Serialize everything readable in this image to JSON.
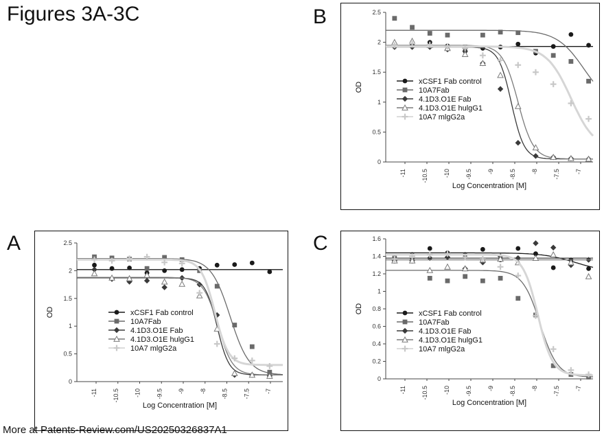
{
  "page_title": "Figures 3A-3C",
  "footer": "More at Patents-Review.com/US20250326837A1",
  "chart_data": [
    {
      "panel": "A",
      "type": "scatter",
      "xlabel": "Log Concentration [M]",
      "ylabel": "OD",
      "ylim": [
        0,
        2.5
      ],
      "xlim": [
        -11.5,
        -6.8
      ],
      "y_ticks": [
        "0",
        "0.5",
        "1",
        "1.5",
        "2",
        "2.5"
      ],
      "x_ticks": [
        "-11",
        "-10.5",
        "-10",
        "-9.5",
        "-9",
        "-8",
        "-8.5",
        "-7.5",
        "-7"
      ],
      "legend": "center",
      "series": [
        {
          "name": "xCSF1 Fab control",
          "marker": "circle",
          "color": "#1a1a1a",
          "x": [
            -11.1,
            -10.7,
            -10.3,
            -9.9,
            -9.5,
            -9.1,
            -8.7,
            -8.3,
            -7.9,
            -7.5,
            -7.1
          ],
          "y": [
            2.1,
            2.04,
            2.05,
            1.96,
            2.0,
            2.02,
            2.04,
            2.1,
            2.11,
            2.14,
            1.98
          ],
          "curve": {
            "top": 2.02,
            "bottom": 2.02,
            "ec50": -8.0,
            "hill": 1
          }
        },
        {
          "name": "10A7Fab",
          "marker": "square",
          "color": "#6a6a6a",
          "x": [
            -11.1,
            -10.7,
            -10.3,
            -9.9,
            -9.5,
            -9.1,
            -8.7,
            -8.3,
            -7.9,
            -7.5,
            -7.1
          ],
          "y": [
            2.25,
            2.23,
            2.21,
            2.04,
            2.24,
            2.2,
            2.0,
            1.72,
            1.02,
            0.63,
            0.17
          ],
          "curve": {
            "top": 2.22,
            "bottom": 0.12,
            "ec50": -8.0,
            "hill": 2.0
          }
        },
        {
          "name": "4.1D3.O1E Fab",
          "marker": "diamond",
          "color": "#3a3a3a",
          "x": [
            -11.1,
            -10.7,
            -10.3,
            -9.9,
            -9.5,
            -9.1,
            -8.7,
            -8.3,
            -7.9,
            -7.5,
            -7.1
          ],
          "y": [
            2.02,
            1.85,
            1.8,
            1.82,
            1.7,
            1.87,
            1.75,
            1.2,
            0.12,
            0.12,
            0.1
          ],
          "curve": {
            "top": 1.87,
            "bottom": 0.12,
            "ec50": -8.3,
            "hill": 3.2
          }
        },
        {
          "name": "4.1D3.O1E hulgG1",
          "marker": "triangle",
          "color": "#7a7a7a",
          "x": [
            -11.1,
            -10.7,
            -10.3,
            -9.9,
            -9.5,
            -9.1,
            -8.7,
            -8.3,
            -7.9,
            -7.5,
            -7.1
          ],
          "y": [
            1.95,
            1.87,
            1.86,
            1.92,
            1.8,
            1.76,
            1.55,
            0.95,
            0.15,
            0.12,
            0.1
          ],
          "curve": {
            "top": 1.88,
            "bottom": 0.12,
            "ec50": -8.28,
            "hill": 2.6
          }
        },
        {
          "name": "10A7 mlgG2a",
          "marker": "plus",
          "color": "#c8c8c8",
          "x": [
            -11.1,
            -10.7,
            -10.3,
            -9.9,
            -9.5,
            -9.1,
            -8.7,
            -8.3,
            -7.9,
            -7.5,
            -7.1
          ],
          "y": [
            2.2,
            2.18,
            2.22,
            2.25,
            2.15,
            2.13,
            1.6,
            0.68,
            0.42,
            0.38,
            0.28
          ],
          "curve": {
            "top": 2.2,
            "bottom": 0.3,
            "ec50": -8.35,
            "hill": 2.8
          }
        }
      ]
    },
    {
      "panel": "B",
      "type": "scatter",
      "xlabel": "Log Concentration [M]",
      "ylabel": "OD",
      "ylim": [
        0,
        2.5
      ],
      "xlim": [
        -11.5,
        -6.8
      ],
      "y_ticks": [
        "0",
        "0.5",
        "1",
        "1.5",
        "2",
        "2.5"
      ],
      "x_ticks": [
        "-11",
        "-10.5",
        "-10",
        "-9.5",
        "-9",
        "-8.5",
        "-8",
        "-7.5",
        "-7"
      ],
      "legend": "left",
      "series": [
        {
          "name": "xCSF1 Fab control",
          "marker": "circle",
          "color": "#1a1a1a",
          "x": [
            -11.3,
            -10.9,
            -10.5,
            -10.1,
            -9.7,
            -9.3,
            -8.9,
            -8.5,
            -8.1,
            -7.7,
            -7.3,
            -6.9
          ],
          "y": [
            1.93,
            1.97,
            2.0,
            1.94,
            1.85,
            1.9,
            1.92,
            1.97,
            1.82,
            1.93,
            2.13,
            1.95
          ],
          "curve": {
            "top": 1.93,
            "bottom": 1.93,
            "ec50": -8.0,
            "hill": 1
          }
        },
        {
          "name": "10A7Fab",
          "marker": "square",
          "color": "#6a6a6a",
          "x": [
            -11.3,
            -10.9,
            -10.5,
            -10.1,
            -9.7,
            -9.3,
            -8.9,
            -8.5,
            -8.1,
            -7.7,
            -7.3,
            -6.9
          ],
          "y": [
            2.4,
            2.25,
            2.15,
            2.12,
            1.92,
            2.12,
            2.17,
            2.16,
            1.85,
            1.78,
            1.68,
            1.35
          ],
          "curve": {
            "top": 2.2,
            "bottom": 0.9,
            "ec50": -7.0,
            "hill": 1.4
          }
        },
        {
          "name": "4.1D3.O1E Fab",
          "marker": "diamond",
          "color": "#3a3a3a",
          "x": [
            -11.3,
            -10.9,
            -10.5,
            -10.1,
            -9.7,
            -9.3,
            -8.9,
            -8.5,
            -8.1,
            -7.7,
            -7.3,
            -6.9
          ],
          "y": [
            1.92,
            1.92,
            1.92,
            1.88,
            1.85,
            1.65,
            1.22,
            0.32,
            0.1,
            0.08,
            0.06,
            0.05
          ],
          "curve": {
            "top": 1.92,
            "bottom": 0.05,
            "ec50": -8.65,
            "hill": 3.0
          }
        },
        {
          "name": "4.1D3.O1E hulgG1",
          "marker": "triangle",
          "color": "#7a7a7a",
          "x": [
            -11.3,
            -10.9,
            -10.5,
            -10.1,
            -9.7,
            -9.3,
            -8.9,
            -8.5,
            -8.1,
            -7.7,
            -7.3,
            -6.9
          ],
          "y": [
            2.0,
            2.02,
            1.95,
            1.9,
            1.8,
            1.65,
            1.45,
            0.93,
            0.24,
            0.08,
            0.06,
            0.05
          ],
          "curve": {
            "top": 1.95,
            "bottom": 0.05,
            "ec50": -8.5,
            "hill": 2.5
          }
        },
        {
          "name": "10A7 mlgG2a",
          "marker": "plus",
          "color": "#c8c8c8",
          "x": [
            -11.3,
            -10.9,
            -10.5,
            -10.1,
            -9.7,
            -9.3,
            -8.9,
            -8.5,
            -8.1,
            -7.7,
            -7.3,
            -6.9
          ],
          "y": [
            1.95,
            1.98,
            1.96,
            1.93,
            1.9,
            1.78,
            1.7,
            1.62,
            1.5,
            1.3,
            0.98,
            0.72
          ],
          "curve": {
            "top": 1.93,
            "bottom": 0.2,
            "ec50": -7.3,
            "hill": 1.6
          }
        }
      ]
    },
    {
      "panel": "C",
      "type": "scatter",
      "xlabel": "Log Concentration [M]",
      "ylabel": "OD",
      "ylim": [
        0,
        1.6
      ],
      "xlim": [
        -11.5,
        -6.8
      ],
      "y_ticks": [
        "0",
        "0.2",
        "0.4",
        "0.6",
        "0.8",
        "1",
        "1.2",
        "1.4",
        "1.6"
      ],
      "x_ticks": [
        "-11",
        "-10.5",
        "-10",
        "-9.5",
        "-9",
        "-8.5",
        "-8",
        "-7.5",
        "-7"
      ],
      "legend": "center",
      "series": [
        {
          "name": "xCSF1 Fab control",
          "marker": "circle",
          "color": "#1a1a1a",
          "x": [
            -11.3,
            -10.9,
            -10.5,
            -10.1,
            -9.7,
            -9.3,
            -8.9,
            -8.5,
            -8.1,
            -7.7,
            -7.3,
            -6.9
          ],
          "y": [
            1.38,
            1.42,
            1.49,
            1.44,
            1.42,
            1.48,
            1.36,
            1.49,
            1.43,
            1.27,
            1.36,
            1.26
          ],
          "curve": {
            "top": 1.44,
            "bottom": 1.22,
            "ec50": -7.2,
            "hill": 1.2
          }
        },
        {
          "name": "10A7Fab",
          "marker": "square",
          "color": "#6a6a6a",
          "x": [
            -11.3,
            -10.9,
            -10.5,
            -10.1,
            -9.7,
            -9.3,
            -8.9,
            -8.5,
            -8.1,
            -7.7,
            -7.3,
            -6.9
          ],
          "y": [
            1.38,
            1.35,
            1.15,
            1.12,
            1.17,
            1.12,
            1.15,
            0.92,
            0.73,
            0.15,
            0.05,
            0.02
          ],
          "curve": {
            "top": 1.24,
            "bottom": 0.02,
            "ec50": -8.0,
            "hill": 2.2
          }
        },
        {
          "name": "4.1D3.O1E Fab",
          "marker": "diamond",
          "color": "#3a3a3a",
          "x": [
            -11.3,
            -10.9,
            -10.5,
            -10.1,
            -9.7,
            -9.3,
            -8.9,
            -8.5,
            -8.1,
            -7.7,
            -7.3,
            -6.9
          ],
          "y": [
            1.35,
            1.35,
            1.38,
            1.39,
            1.26,
            1.33,
            1.4,
            1.38,
            1.55,
            1.5,
            1.3,
            1.36
          ],
          "curve": {
            "top": 1.38,
            "bottom": 1.38,
            "ec50": -8.0,
            "hill": 1
          }
        },
        {
          "name": "4.1D3.O1E hulgG1",
          "marker": "triangle",
          "color": "#7a7a7a",
          "x": [
            -11.3,
            -10.9,
            -10.5,
            -10.1,
            -9.7,
            -9.3,
            -8.9,
            -8.5,
            -8.1,
            -7.7,
            -7.3,
            -6.9
          ],
          "y": [
            1.35,
            1.35,
            1.24,
            1.28,
            1.26,
            1.36,
            1.37,
            1.33,
            1.38,
            1.42,
            1.33,
            1.17
          ],
          "curve": {
            "top": 1.36,
            "bottom": 1.36,
            "ec50": -8.0,
            "hill": 1
          }
        },
        {
          "name": "10A7 mlgG2a",
          "marker": "plus",
          "color": "#c8c8c8",
          "x": [
            -11.3,
            -10.9,
            -10.5,
            -10.1,
            -9.7,
            -9.3,
            -8.9,
            -8.5,
            -8.1,
            -7.7,
            -7.3,
            -6.9
          ],
          "y": [
            1.37,
            1.4,
            1.42,
            1.43,
            1.39,
            1.37,
            1.28,
            1.18,
            0.72,
            0.34,
            0.1,
            0.05
          ],
          "curve": {
            "top": 1.42,
            "bottom": 0.04,
            "ec50": -8.05,
            "hill": 2.6
          }
        }
      ]
    }
  ]
}
